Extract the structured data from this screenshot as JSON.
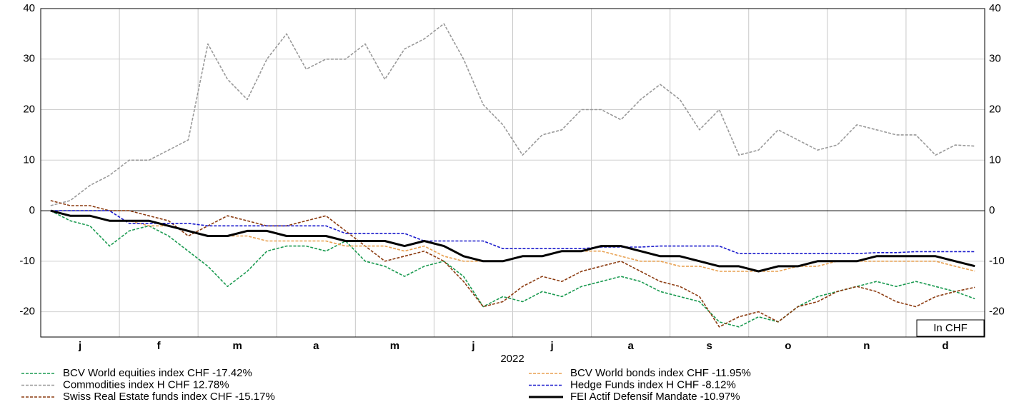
{
  "chart_data": {
    "type": "line",
    "categories": [
      "j",
      "f",
      "m",
      "a",
      "m",
      "j",
      "j",
      "a",
      "s",
      "o",
      "n",
      "d"
    ],
    "xlabel": "2022",
    "annotation": "In CHF",
    "ylim": [
      -25,
      40
    ],
    "yticks": [
      -20,
      -10,
      0,
      10,
      20,
      30,
      40
    ],
    "grid": true,
    "series": [
      {
        "name": "BCV World equities index CHF -17.42%",
        "color": "#1a9a50",
        "style": "dashed",
        "values": [
          [
            0,
            -2,
            -3,
            -7
          ],
          [
            -4,
            -3,
            -5,
            -8
          ],
          [
            -11,
            -15,
            -12,
            -8
          ],
          [
            -7,
            -7,
            -8,
            -6
          ],
          [
            -10,
            -11,
            -13,
            -11
          ],
          [
            -10,
            -13,
            -19,
            -17
          ],
          [
            -18,
            -16,
            -17,
            -15
          ],
          [
            -14,
            -13,
            -14,
            -16
          ],
          [
            -17,
            -18,
            -22,
            -23
          ],
          [
            -21,
            -22,
            -19,
            -17
          ],
          [
            -16,
            -15,
            -14,
            -15
          ],
          [
            -14,
            -15,
            -16,
            -17.42
          ]
        ]
      },
      {
        "name": "Commodities index H CHF 12.78%",
        "color": "#999999",
        "style": "dashed",
        "values": [
          [
            1,
            2,
            5,
            7
          ],
          [
            10,
            10,
            12,
            14
          ],
          [
            33,
            26,
            22,
            30
          ],
          [
            35,
            28,
            30,
            30
          ],
          [
            33,
            26,
            32,
            34
          ],
          [
            37,
            30,
            21,
            17
          ],
          [
            11,
            15,
            16,
            20
          ],
          [
            20,
            18,
            22,
            25
          ],
          [
            22,
            16,
            20,
            11
          ],
          [
            12,
            16,
            14,
            12
          ],
          [
            13,
            17,
            16,
            15
          ],
          [
            15,
            11,
            13,
            12.78
          ]
        ]
      },
      {
        "name": "Swiss Real Estate funds index CHF -15.17%",
        "color": "#8b3a0f",
        "style": "dashed",
        "values": [
          [
            2,
            1,
            1,
            0
          ],
          [
            0,
            -1,
            -2,
            -5
          ],
          [
            -3,
            -1,
            -2,
            -3
          ],
          [
            -3,
            -2,
            -1,
            -4
          ],
          [
            -7,
            -10,
            -9,
            -8
          ],
          [
            -10,
            -14,
            -19,
            -18
          ],
          [
            -15,
            -13,
            -14,
            -12
          ],
          [
            -11,
            -10,
            -12,
            -14
          ],
          [
            -15,
            -17,
            -23,
            -21
          ],
          [
            -20,
            -22,
            -19,
            -18
          ],
          [
            -16,
            -15,
            -16,
            -18
          ],
          [
            -19,
            -17,
            -16,
            -15.17
          ]
        ]
      },
      {
        "name": "BCV World bonds index CHF -11.95%",
        "color": "#e8a050",
        "style": "dashed",
        "values": [
          [
            0,
            -1,
            -1,
            -2
          ],
          [
            -2,
            -3,
            -3,
            -4
          ],
          [
            -5,
            -5,
            -5,
            -6
          ],
          [
            -6,
            -6,
            -6,
            -7
          ],
          [
            -7,
            -7,
            -8,
            -7
          ],
          [
            -9,
            -10,
            -10,
            -10
          ],
          [
            -9,
            -9,
            -8,
            -8
          ],
          [
            -8,
            -9,
            -10,
            -10
          ],
          [
            -11,
            -11,
            -12,
            -12
          ],
          [
            -12,
            -12,
            -11,
            -11
          ],
          [
            -10,
            -10,
            -10,
            -10
          ],
          [
            -10,
            -10,
            -11,
            -11.95
          ]
        ]
      },
      {
        "name": "Hedge Funds index H CHF -8.12%",
        "color": "#1a1acc",
        "style": "dashed",
        "values": [
          [
            0,
            0,
            0,
            0
          ],
          [
            -2.5,
            -2.5,
            -2.5,
            -2.5
          ],
          [
            -3,
            -3,
            -3,
            -3
          ],
          [
            -3,
            -3,
            -3,
            -4.5
          ],
          [
            -4.5,
            -4.5,
            -4.5,
            -6
          ],
          [
            -6,
            -6,
            -6,
            -7.5
          ],
          [
            -7.5,
            -7.5,
            -7.5,
            -7.5
          ],
          [
            -7.2,
            -7.2,
            -7.2,
            -7
          ],
          [
            -7,
            -7,
            -7,
            -8.5
          ],
          [
            -8.5,
            -8.5,
            -8.5,
            -8.5
          ],
          [
            -8.5,
            -8.5,
            -8.3,
            -8.3
          ],
          [
            -8.1,
            -8.1,
            -8.1,
            -8.12
          ]
        ]
      },
      {
        "name": "FEI Actif Defensif Mandate  -10.97%",
        "color": "#000000",
        "style": "solid",
        "values": [
          [
            0,
            -1,
            -1,
            -2
          ],
          [
            -2,
            -2,
            -3,
            -4
          ],
          [
            -5,
            -5,
            -4,
            -4
          ],
          [
            -5,
            -5,
            -5,
            -6
          ],
          [
            -6,
            -6,
            -7,
            -6
          ],
          [
            -7,
            -9,
            -10,
            -10
          ],
          [
            -9,
            -9,
            -8,
            -8
          ],
          [
            -7,
            -7,
            -8,
            -9
          ],
          [
            -9,
            -10,
            -11,
            -11
          ],
          [
            -12,
            -11,
            -11,
            -10
          ],
          [
            -10,
            -10,
            -9,
            -9
          ],
          [
            -9,
            -9,
            -10,
            -10.97
          ]
        ]
      }
    ]
  }
}
